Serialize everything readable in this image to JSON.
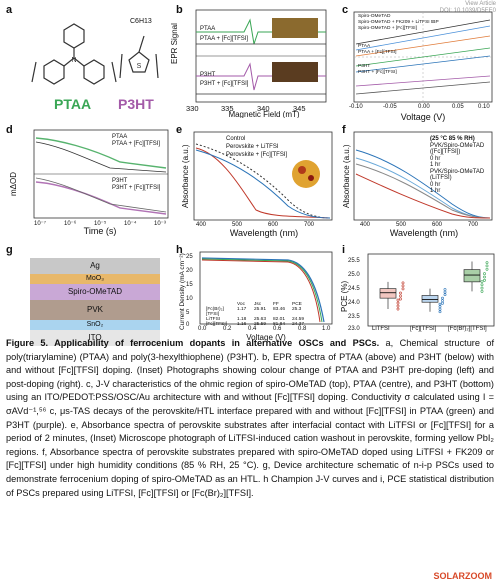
{
  "header": {
    "article_link": "View Article",
    "doi": "DOI: 10.1039/D5EE0"
  },
  "panels": {
    "a": {
      "label": "a",
      "mol1": "PTAA",
      "mol2": "P3HT",
      "subst": "C6H13"
    },
    "b": {
      "label": "b",
      "ylabel": "EPR Signal",
      "xlabel": "Magnetic Field (mT)",
      "ticks": [
        "330",
        "335",
        "340",
        "345"
      ],
      "l1": "PTAA",
      "l2": "PTAA + [Fc][TFSI]",
      "l3": "P3HT",
      "l4": "P3HT + [Fc][TFSI]"
    },
    "c": {
      "label": "c",
      "xlabel": "Voltage (V)",
      "ticks": [
        "-0.10",
        "-0.05",
        "0.00",
        "0.05",
        "0.10"
      ],
      "legend": [
        "Spiro-OMeTAD",
        "Spiro-OMeTAD + FK209 + LiTFSI tBP",
        "Spiro-OMeTAD + [Fc][TFSI]",
        "PTAA",
        "PTAA + [Fc][TFSI]",
        "P3HT",
        "P3HT + [Fc][TFSI]"
      ]
    },
    "d": {
      "label": "d",
      "ylabel": "mΔOD",
      "xlabel": "Time (s)",
      "ticks": [
        "10⁻⁷",
        "10⁻⁶",
        "10⁻⁵",
        "10⁻⁴",
        "10⁻³"
      ],
      "top1": "PTAA",
      "top2": "PTAA + [Fc][TFSI]",
      "bot1": "P3HT",
      "bot2": "P3HT + [Fc][TFSI]"
    },
    "e": {
      "label": "e",
      "ylabel": "Absorbance (a.u.)",
      "xlabel": "Wavelength (nm)",
      "ticks": [
        "400",
        "500",
        "600",
        "700"
      ],
      "legend": [
        "Control",
        "Perovskite + LiTFSI",
        "Perovskite + [Fc][TFSI]"
      ]
    },
    "f": {
      "label": "f",
      "ylabel": "Absorbance (a.u.)",
      "xlabel": "Wavelength (nm)",
      "ticks": [
        "400",
        "500",
        "600",
        "700"
      ],
      "cond": "(25 °C 85 % RH)",
      "g1": "PVK/Spiro-OMeTAD",
      "g1b": "([Fc][TFSI])",
      "t0": "0 hr",
      "t1": "1 hr",
      "g2": "PVK/Spiro-OMeTAD",
      "g2b": "(LiTFSI)",
      "t2": "0 hr",
      "t3": "1 hr"
    },
    "g": {
      "label": "g",
      "layers": [
        "Ag",
        "MoO₃",
        "Spiro-OMeTAD",
        "PVK",
        "SnO₂",
        "ITO"
      ]
    },
    "h": {
      "label": "h",
      "ylabel": "Current Density (mA cm⁻²)",
      "xlabel": "Voltage (V)",
      "xticks": [
        "0.0",
        "0.2",
        "0.4",
        "0.6",
        "0.8",
        "1.0"
      ],
      "yticks": [
        "25",
        "20",
        "15",
        "10",
        "5",
        "0"
      ],
      "table_header": [
        "",
        "Voc",
        "Jsc",
        "FF",
        "PCE"
      ],
      "rows": [
        [
          "[Fc(Br)₂][TFSI]",
          "1.17",
          "25.91",
          "83.46",
          "25.3"
        ],
        [
          "LiTFSI",
          "1.18",
          "25.63",
          "82.01",
          "24.59"
        ],
        [
          "[Fc][TFSI]",
          "1.16",
          "25.59",
          "81.84",
          "24.37"
        ]
      ]
    },
    "i": {
      "label": "i",
      "ylabel": "PCE (%)",
      "yticks": [
        "25.5",
        "25.0",
        "24.5",
        "24.0",
        "23.5",
        "23.0"
      ],
      "cats": [
        "LiTFSI",
        "[Fc][TFSI]",
        "[Fc(Br)₂][TFSI]"
      ],
      "box_data": [
        {
          "q1": 23.95,
          "median": 24.15,
          "q3": 24.3,
          "min": 23.55,
          "max": 24.55
        },
        {
          "q1": 23.8,
          "median": 23.9,
          "q3": 24.05,
          "min": 23.45,
          "max": 24.3
        },
        {
          "q1": 24.55,
          "median": 24.8,
          "q3": 25.0,
          "min": 24.2,
          "max": 25.3
        }
      ]
    }
  },
  "caption": {
    "title": "Figure 5. Applicability of ferrocenium dopants in alternative OSCs and PSCs.",
    "body": " a, Chemical structure of poly(triarylamine) (PTAA) and poly(3-hexylthiophene) (P3HT). b, EPR spectra of PTAA (above) and P3HT (below) with and without [Fc][TFSI] doping. (Inset) Photographs showing colour change of PTAA and P3HT pre-doping (left) and post-doping (right). c, J-V characteristics of the ohmic region of spiro-OMeTAD (top), PTAA (centre), and P3HT (bottom) using an ITO/PEDOT:PSS/OSC/Au architecture with and without [Fc][TFSI] doping. Conductivity σ calculated using I = σAVd⁻¹,⁵⁶ c, μs-TAS decays of the perovskite/HTL interface prepared with and without [Fc][TFSI] in PTAA (green) and P3HT (purple). e, Absorbance spectra of perovskite substrates after interfacial contact with LiTFSI or [Fc][TFSI] for a period of 2 minutes, (Inset) Microscope photograph of LiTFSI-induced cation washout in perovskite, forming yellow PbI₂ regions. f, Absorbance spectra of perovskite substrates prepared with spiro-OMeTAD doped using LiTFSI + FK209 or [Fc][TFSI] under high humidity conditions (85 % RH, 25 °C). g, Device architecture schematic of n-i-p PSCs used to demonstrate ferrocenium doping of spiro-OMeTAD as an HTL. h Champion J-V curves and i, PCE statistical distribution of PSCs prepared using LiTFSI, [Fc][TFSI] or [Fc(Br)₂][TFSI]."
  },
  "footer": {
    "watermark": "SOLARZOOM"
  },
  "colors": {
    "green": "#3aa655",
    "purple": "#a35aa8",
    "red": "#c0392b",
    "blue": "#2b74b8"
  }
}
